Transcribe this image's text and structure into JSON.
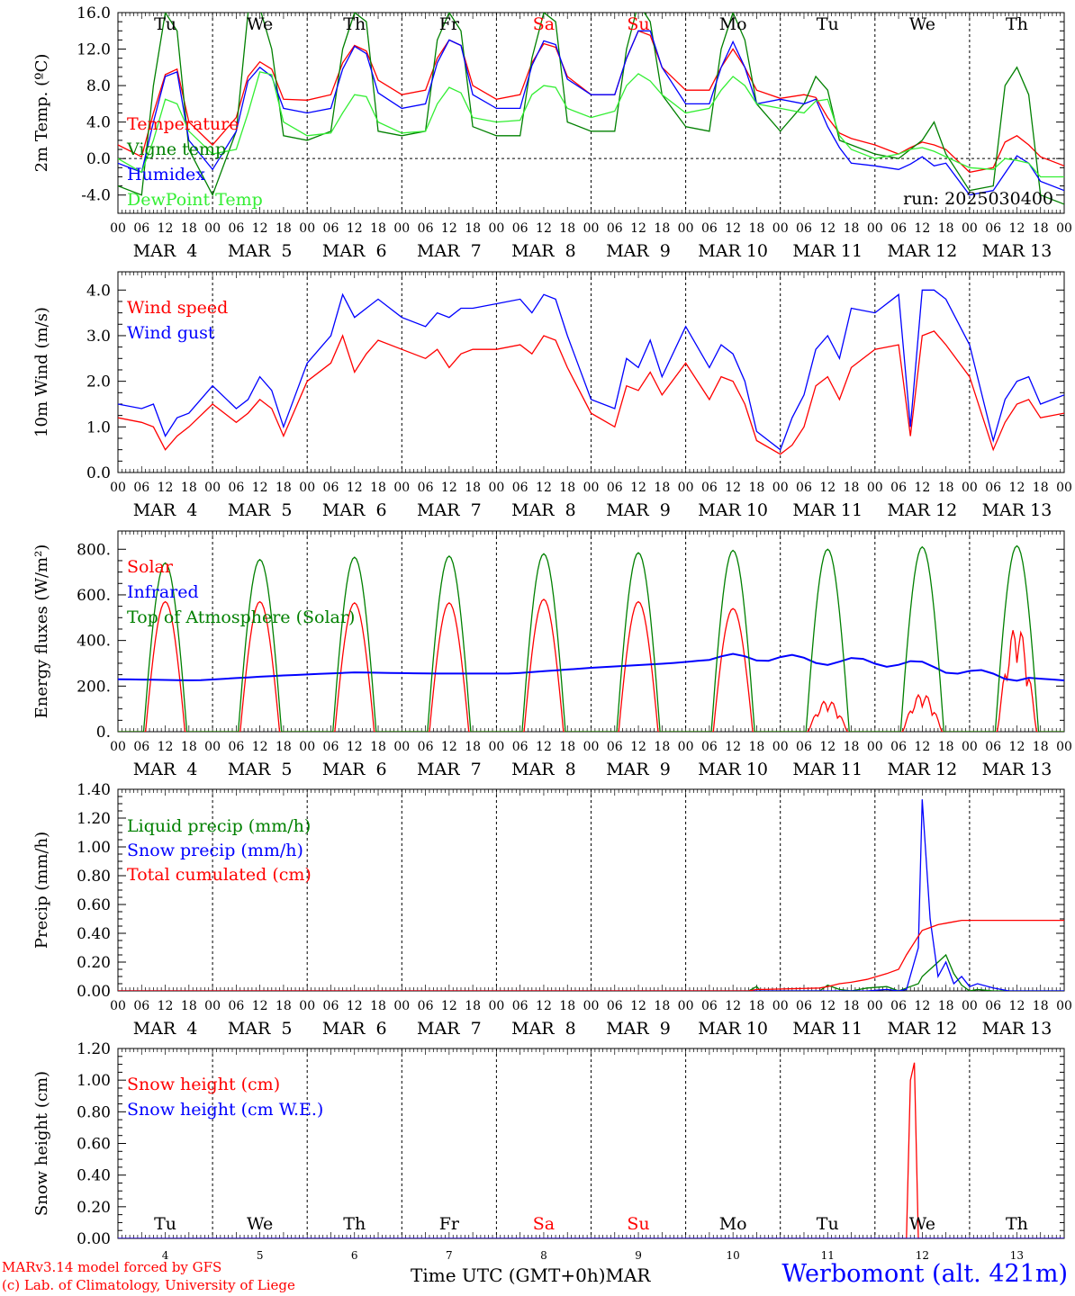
{
  "colors": {
    "red": "#ff0000",
    "green": "#008000",
    "blue": "#0000ff",
    "lightgreen": "#33ee33",
    "black": "#000000"
  },
  "hour_ticks": [
    "00",
    "06",
    "12",
    "18"
  ],
  "day_names": [
    "Tu",
    "We",
    "Th",
    "Fr",
    "Sa",
    "Su",
    "Mo",
    "Tu",
    "We",
    "Th"
  ],
  "weekend_days": [
    4,
    5
  ],
  "month_day_labels": [
    "MAR  4",
    "MAR  5",
    "MAR  6",
    "MAR  7",
    "MAR  8",
    "MAR  9",
    "MAR 10",
    "MAR 11",
    "MAR 12",
    "MAR 13"
  ],
  "bottom_day_numbers": [
    "4",
    "5",
    "6",
    "7",
    "8",
    "9",
    "10",
    "11",
    "12",
    "13"
  ],
  "footer": {
    "model": "MARv3.14 model forced by GFS",
    "lab": "(c) Lab. of Climatology, University of Liege",
    "time_axis": "Time UTC (GMT+0h)MAR",
    "station": "Werbomont (alt. 421m)"
  },
  "chart_data": [
    {
      "type": "line",
      "ylabel": "2m Temp. (ºC)",
      "ylim": [
        -6,
        16
      ],
      "yticks": [
        "16.0",
        "12.0",
        "8.0",
        "4.0",
        "0.0",
        "-4.0"
      ],
      "ytick_values": [
        16,
        12,
        8,
        4,
        0,
        -4
      ],
      "zero_line": true,
      "run_label": "run: 2025030400",
      "x_hours": [
        0,
        6,
        9,
        12,
        15,
        18,
        24,
        30,
        33,
        36,
        39,
        42,
        48,
        54,
        57,
        60,
        63,
        66,
        72,
        78,
        81,
        84,
        87,
        90,
        96,
        102,
        105,
        108,
        111,
        114,
        120,
        126,
        129,
        132,
        135,
        138,
        144,
        150,
        153,
        156,
        159,
        162,
        168,
        174,
        177,
        180,
        183,
        186,
        192,
        198,
        201,
        204,
        207,
        210,
        216,
        222,
        225,
        228,
        231,
        234,
        240
      ],
      "series": [
        {
          "name": "Temperature",
          "color": "red",
          "values": [
            1.5,
            0.2,
            5,
            9.2,
            9.8,
            4,
            1.5,
            4.5,
            9,
            10.6,
            9.8,
            6.5,
            6.4,
            7,
            10.5,
            12.4,
            11.8,
            8.6,
            7,
            7.5,
            11,
            13,
            12.4,
            8,
            6.5,
            7,
            10.5,
            12.6,
            12.2,
            9,
            7,
            7,
            11,
            14,
            13.5,
            10,
            7.5,
            7.5,
            10,
            12,
            10,
            7.5,
            6.6,
            7,
            6.7,
            4.5,
            2.8,
            2.2,
            1.5,
            0.5,
            1.2,
            1.8,
            1.5,
            1,
            -1.5,
            -1,
            1.8,
            2.5,
            1.5,
            0.2,
            -0.8
          ]
        },
        {
          "name": "Vigne temp",
          "color": "green",
          "values": [
            -3,
            -4,
            8,
            16,
            14,
            1,
            -4,
            3,
            16,
            16.5,
            12,
            2.5,
            2,
            3,
            12,
            16,
            15,
            3,
            2.5,
            3,
            13,
            16,
            14,
            3.5,
            2.5,
            2.5,
            11,
            16,
            15,
            4,
            3,
            3,
            12,
            17,
            15,
            7,
            3.5,
            3,
            12,
            16,
            13,
            6,
            3,
            6,
            9,
            7.5,
            2,
            1.5,
            0.5,
            0,
            1,
            2,
            4,
            0.5,
            -3.5,
            -3,
            8,
            10,
            7,
            -4,
            -5
          ]
        },
        {
          "name": "Humidex",
          "color": "blue",
          "values": [
            -0.5,
            -1.5,
            4,
            9,
            9.5,
            2,
            -1.2,
            3,
            8.5,
            10,
            9,
            5.5,
            5,
            5.5,
            9.8,
            12.3,
            11.5,
            7.2,
            5.5,
            6,
            10.5,
            13,
            12.4,
            7,
            5.5,
            5.5,
            10.2,
            12.9,
            12.5,
            8.7,
            7,
            7,
            11,
            14,
            14,
            10,
            6,
            6,
            10,
            12.8,
            10,
            6,
            6.5,
            6,
            6.5,
            3.5,
            1.2,
            -0.5,
            -0.8,
            -1.2,
            -0.6,
            0.2,
            -0.8,
            -0.5,
            -4,
            -3.5,
            -1.6,
            0.3,
            -0.5,
            -2.5,
            -3.5
          ]
        },
        {
          "name": "DewPoint Temp",
          "color": "lightgreen",
          "values": [
            0,
            -1.5,
            2,
            6.5,
            6,
            3,
            0.5,
            1,
            5,
            9.5,
            9.2,
            4,
            2.5,
            2.8,
            5,
            7,
            6.8,
            4,
            2.8,
            3,
            6,
            7.8,
            7.2,
            4.5,
            4,
            4.2,
            7,
            8,
            7.8,
            5.5,
            4.5,
            5.2,
            8,
            9.3,
            8.5,
            7,
            5,
            5.5,
            7.5,
            9,
            8,
            6,
            5.5,
            5,
            6.3,
            6.5,
            2.5,
            1,
            0,
            0.5,
            1,
            1.2,
            0.8,
            0.2,
            -1,
            -1.2,
            0,
            -0.2,
            -0.5,
            -2,
            -2
          ]
        }
      ]
    },
    {
      "type": "line",
      "ylabel": "10m Wind (m/s)",
      "ylim": [
        0,
        4.4
      ],
      "yticks": [
        "4.0",
        "3.0",
        "2.0",
        "1.0",
        "0.0"
      ],
      "ytick_values": [
        4,
        3,
        2,
        1,
        0
      ],
      "x_hours": [
        0,
        6,
        9,
        12,
        15,
        18,
        24,
        30,
        33,
        36,
        39,
        42,
        48,
        54,
        57,
        60,
        63,
        66,
        72,
        78,
        81,
        84,
        87,
        90,
        96,
        102,
        105,
        108,
        111,
        114,
        120,
        126,
        129,
        132,
        135,
        138,
        144,
        150,
        153,
        156,
        159,
        162,
        168,
        171,
        174,
        177,
        180,
        183,
        186,
        192,
        198,
        201,
        204,
        207,
        210,
        216,
        222,
        225,
        228,
        231,
        234,
        240
      ],
      "series": [
        {
          "name": "Wind speed",
          "color": "red",
          "values": [
            1.2,
            1.1,
            1,
            0.5,
            0.8,
            1,
            1.5,
            1.1,
            1.3,
            1.6,
            1.4,
            0.8,
            2,
            2.4,
            3,
            2.2,
            2.6,
            2.9,
            2.7,
            2.5,
            2.7,
            2.3,
            2.6,
            2.7,
            2.7,
            2.8,
            2.6,
            3,
            2.9,
            2.3,
            1.3,
            1,
            1.9,
            1.8,
            2.2,
            1.7,
            2.4,
            1.6,
            2.1,
            2,
            1.5,
            0.7,
            0.4,
            0.6,
            1,
            1.9,
            2.1,
            1.6,
            2.3,
            2.7,
            2.8,
            0.8,
            3,
            3.1,
            2.8,
            2.1,
            0.5,
            1.1,
            1.5,
            1.6,
            1.2,
            1.3
          ]
        },
        {
          "name": "Wind gust",
          "color": "blue",
          "values": [
            1.5,
            1.4,
            1.5,
            0.8,
            1.2,
            1.3,
            1.9,
            1.4,
            1.6,
            2.1,
            1.8,
            1,
            2.4,
            3,
            3.9,
            3.4,
            3.6,
            3.8,
            3.4,
            3.2,
            3.5,
            3.4,
            3.6,
            3.6,
            3.7,
            3.8,
            3.5,
            3.9,
            3.8,
            3,
            1.6,
            1.4,
            2.5,
            2.3,
            2.9,
            2.1,
            3.2,
            2.3,
            2.8,
            2.6,
            2,
            0.9,
            0.5,
            1.2,
            1.7,
            2.7,
            3,
            2.5,
            3.6,
            3.5,
            3.9,
            1,
            4,
            4,
            3.8,
            2.8,
            0.7,
            1.6,
            2,
            2.1,
            1.5,
            1.7
          ]
        }
      ]
    },
    {
      "type": "line",
      "ylabel": "Energy fluxes (W/m²)",
      "ylim": [
        0,
        880
      ],
      "yticks": [
        "800.",
        "600.",
        "400.",
        "200.",
        "0."
      ],
      "ytick_values": [
        800,
        600,
        400,
        200,
        0
      ],
      "series": [
        {
          "name": "Solar",
          "color": "red",
          "daily_peaks": [
            570,
            570,
            565,
            565,
            580,
            570,
            540,
            140,
            170,
            470
          ]
        },
        {
          "name": "Infrared",
          "color": "blue",
          "daily_levels": [
            230,
            225,
            245,
            260,
            255,
            255,
            280,
            300,
            330,
            310,
            300,
            250,
            225
          ]
        },
        {
          "name": "Top of Atmosphere (Solar)",
          "color": "green",
          "daily_peaks": [
            740,
            755,
            765,
            770,
            780,
            785,
            795,
            800,
            810,
            815
          ]
        }
      ]
    },
    {
      "type": "line",
      "ylabel": "Precip (mm/h)",
      "ylim": [
        0,
        1.4
      ],
      "yticks": [
        "1.40",
        "1.20",
        "1.00",
        "0.80",
        "0.60",
        "0.40",
        "0.20",
        "0.00"
      ],
      "ytick_values": [
        1.4,
        1.2,
        1,
        0.8,
        0.6,
        0.4,
        0.2,
        0
      ],
      "x_hours": [
        0,
        160,
        162,
        163,
        164,
        178,
        180,
        183,
        186,
        190,
        195,
        198,
        200,
        203,
        204,
        206,
        208,
        210,
        212,
        214,
        216,
        218,
        222,
        226,
        230,
        240
      ],
      "series": [
        {
          "name": "Liquid precip (mm/h)",
          "color": "green",
          "values": [
            0,
            0,
            0.03,
            0,
            0,
            0,
            0.04,
            0.01,
            0,
            0.02,
            0.03,
            0,
            0.02,
            0.05,
            0.1,
            0.15,
            0.2,
            0.25,
            0.12,
            0.04,
            0,
            0.01,
            0,
            0,
            0,
            0
          ]
        },
        {
          "name": "Snow precip (mm/h)",
          "color": "blue",
          "values": [
            0,
            0,
            0,
            0,
            0,
            0,
            0,
            0,
            0,
            0,
            0.01,
            0,
            0.01,
            0.3,
            1.33,
            0.5,
            0.1,
            0.2,
            0.05,
            0.1,
            0.03,
            0.05,
            0.02,
            0,
            0,
            0
          ]
        },
        {
          "name": "Total cumulated (cm)",
          "color": "red",
          "values": [
            0,
            0,
            0.01,
            0.01,
            0.01,
            0.02,
            0.03,
            0.05,
            0.06,
            0.08,
            0.12,
            0.15,
            0.25,
            0.38,
            0.42,
            0.44,
            0.46,
            0.47,
            0.48,
            0.49,
            0.49,
            0.49,
            0.49,
            0.49,
            0.49,
            0.49
          ]
        }
      ]
    },
    {
      "type": "line",
      "ylabel": "Snow height (cm)",
      "ylim": [
        0,
        1.2
      ],
      "yticks": [
        "1.20",
        "1.00",
        "0.80",
        "0.60",
        "0.40",
        "0.20",
        "0.00"
      ],
      "ytick_values": [
        1.2,
        1,
        0.8,
        0.6,
        0.4,
        0.2,
        0
      ],
      "x_hours": [
        0,
        198,
        200,
        201,
        202,
        203,
        240
      ],
      "series": [
        {
          "name": "Snow height (cm)",
          "color": "red",
          "values": [
            0,
            0,
            0,
            1.0,
            1.11,
            0,
            0
          ]
        },
        {
          "name": "Snow height (cm W.E.)",
          "color": "blue",
          "values": [
            0,
            0,
            0,
            0,
            0,
            0,
            0
          ]
        }
      ]
    }
  ]
}
